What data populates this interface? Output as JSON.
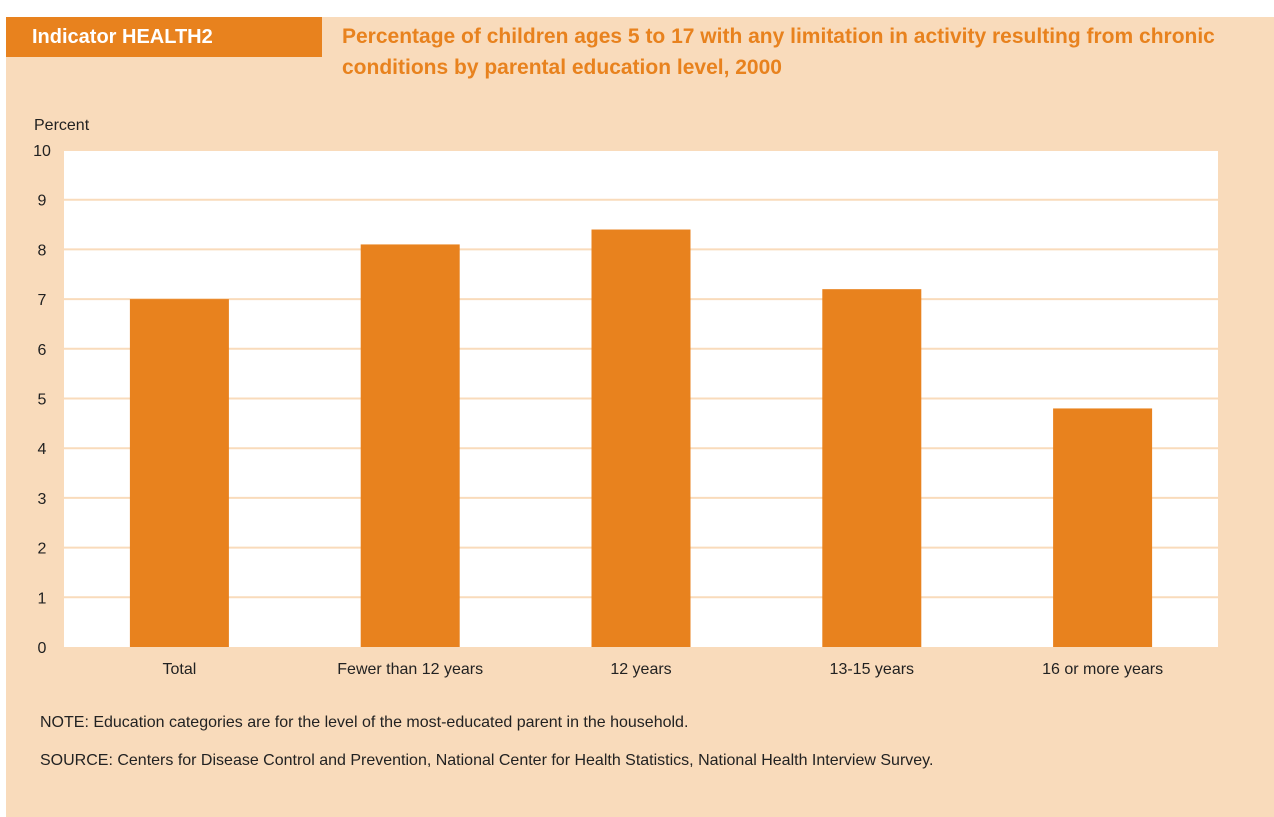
{
  "indicator_label": "Indicator HEALTH2",
  "title": "Percentage of children ages 5 to 17 with any limitation in activity resulting from chronic conditions by parental education level, 2000",
  "colors": {
    "background": "#f9dbbb",
    "accent": "#e8821e",
    "plot_bg": "#ffffff",
    "gridline": "#f9dbbb",
    "text": "#222222"
  },
  "chart_data": {
    "type": "bar",
    "categories": [
      "Total",
      "Fewer than 12 years",
      "12 years",
      "13-15 years",
      "16 or more years"
    ],
    "values": [
      7.0,
      8.1,
      8.4,
      7.2,
      4.8
    ],
    "title": "Percentage of children ages 5 to 17 with any limitation in activity resulting from chronic conditions by parental education level, 2000",
    "xlabel": "",
    "ylabel": "Percent",
    "ylim": [
      0,
      10
    ],
    "yticks": [
      "0",
      "1",
      "2",
      "3",
      "4",
      "5",
      "6",
      "7",
      "8",
      "9",
      "10"
    ],
    "grid": true,
    "legend": "none"
  },
  "note": "NOTE: Education categories are for the level of the most-educated parent in the household.",
  "source": "SOURCE: Centers for Disease Control and Prevention, National Center for Health Statistics, National Health Interview Survey."
}
